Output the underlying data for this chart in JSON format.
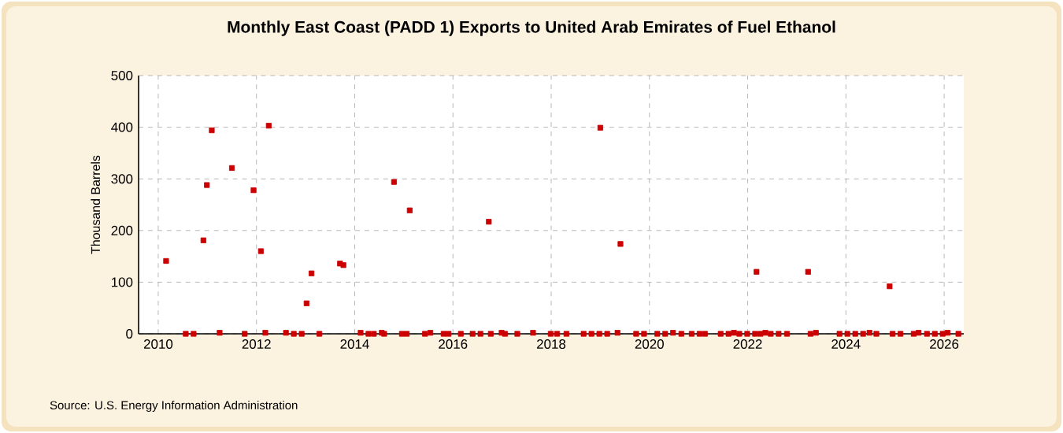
{
  "chart_data": {
    "type": "scatter",
    "title": "Monthly East Coast (PADD 1) Exports to United Arab Emirates of Fuel Ethanol",
    "ylabel": "Thousand Barrels",
    "annotations": [
      "Source: U.S. Energy Information Administration"
    ],
    "series": [
      {
        "color": "#cc0000",
        "x": [
          2010.16,
          2010.56,
          2010.72,
          2010.92,
          2010.99,
          2011.09,
          2011.25,
          2011.5,
          2011.76,
          2011.94,
          2012.09,
          2012.18,
          2012.25,
          2012.6,
          2012.76,
          2012.92,
          2013.02,
          2013.12,
          2013.28,
          2013.7,
          2013.77,
          2014.12,
          2014.28,
          2014.39,
          2014.55,
          2014.6,
          2014.8,
          2014.96,
          2015.06,
          2015.12,
          2015.43,
          2015.54,
          2015.81,
          2015.91,
          2016.16,
          2016.4,
          2016.56,
          2016.73,
          2016.77,
          2016.99,
          2017.06,
          2017.31,
          2017.63,
          2017.99,
          2018.12,
          2018.31,
          2018.66,
          2018.82,
          2018.98,
          2019.0,
          2019.14,
          2019.35,
          2019.41,
          2019.73,
          2019.89,
          2020.16,
          2020.32,
          2020.48,
          2020.65,
          2020.86,
          2021.02,
          2021.13,
          2021.45,
          2021.61,
          2021.72,
          2021.83,
          2021.99,
          2022.15,
          2022.18,
          2022.26,
          2022.36,
          2022.47,
          2022.63,
          2022.8,
          2023.23,
          2023.28,
          2023.39,
          2023.87,
          2024.03,
          2024.19,
          2024.35,
          2024.48,
          2024.62,
          2024.89,
          2024.95,
          2025.11,
          2025.38,
          2025.48,
          2025.65,
          2025.81,
          2025.97,
          2026.07,
          2026.29
        ],
        "values": [
          141,
          0,
          0,
          181,
          288,
          394,
          2,
          321,
          0,
          278,
          160,
          2,
          403,
          2,
          0,
          0,
          59,
          117,
          0,
          136,
          133,
          2,
          0,
          0,
          2,
          0,
          294,
          0,
          0,
          239,
          0,
          2,
          0,
          0,
          0,
          0,
          0,
          217,
          0,
          2,
          0,
          0,
          2,
          0,
          0,
          0,
          0,
          0,
          0,
          399,
          0,
          2,
          174,
          0,
          0,
          0,
          0,
          2,
          0,
          0,
          0,
          0,
          0,
          0,
          2,
          0,
          0,
          0,
          120,
          0,
          2,
          0,
          0,
          0,
          120,
          0,
          2,
          0,
          0,
          0,
          0,
          2,
          0,
          92,
          0,
          0,
          0,
          2,
          0,
          0,
          0,
          2,
          0
        ]
      }
    ],
    "xlim": [
      2009.6,
      2026.4
    ],
    "xticks": [
      2010,
      2012,
      2014,
      2016,
      2018,
      2020,
      2022,
      2024,
      2026
    ],
    "ylim": [
      0,
      500
    ],
    "yticks": [
      0,
      100,
      200,
      300,
      400,
      500
    ],
    "grid": true,
    "marker": "square"
  }
}
